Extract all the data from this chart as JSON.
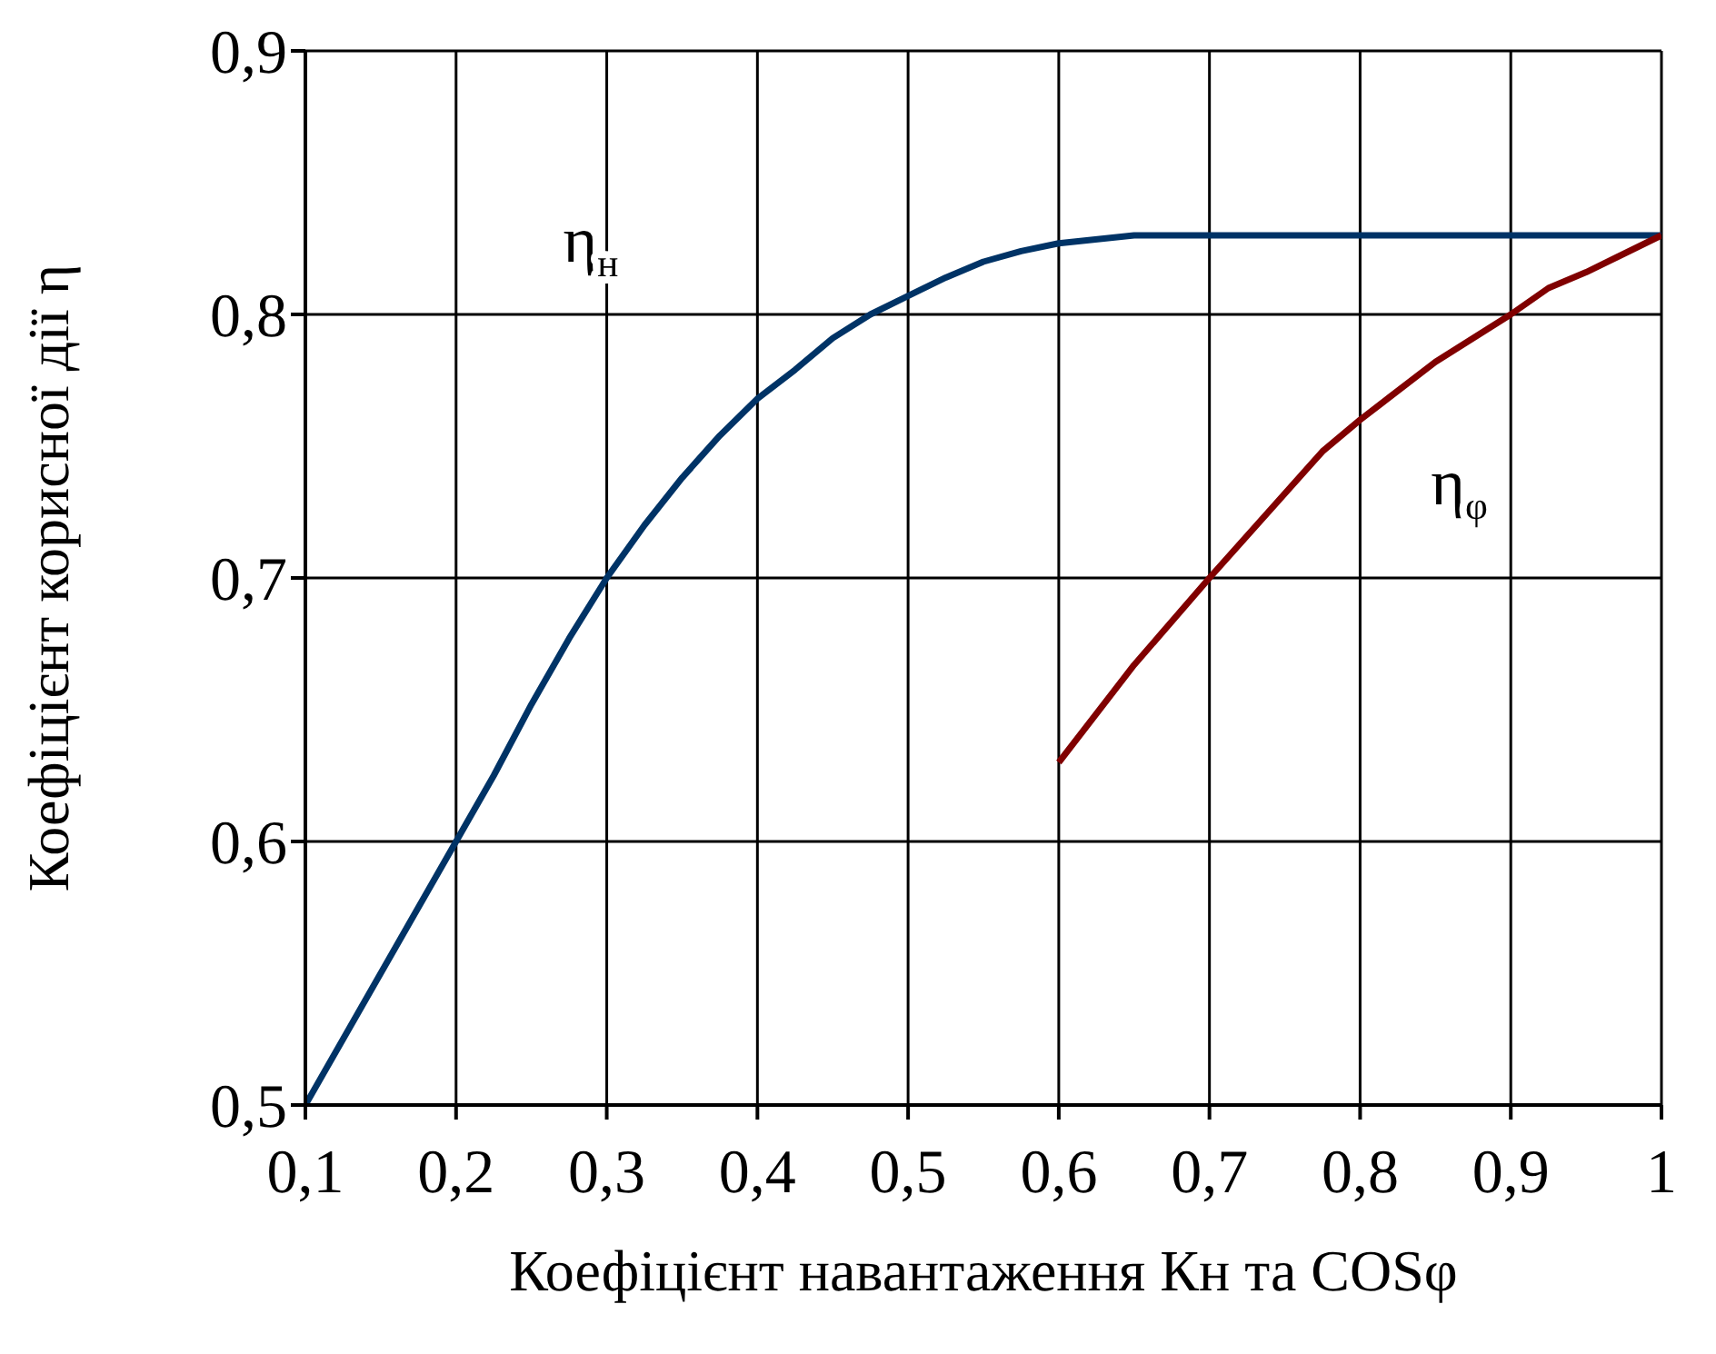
{
  "chart_data": {
    "type": "line",
    "xlabel": "Коефіцієнт навантаження Кн та COSφ",
    "ylabel": "Коефіцієнт корисної дії η",
    "xlim": [
      0.1,
      1
    ],
    "xticks": [
      {
        "value": 0.1,
        "label": "0,1"
      },
      {
        "value": 0.2,
        "label": "0,2"
      },
      {
        "value": 0.3,
        "label": "0,3"
      },
      {
        "value": 0.4,
        "label": "0,4"
      },
      {
        "value": 0.5,
        "label": "0,5"
      },
      {
        "value": 0.6,
        "label": "0,6"
      },
      {
        "value": 0.7,
        "label": "0,7"
      },
      {
        "value": 0.8,
        "label": "0,8"
      },
      {
        "value": 0.9,
        "label": "0,9"
      },
      1
    ],
    "ylim": [
      0.5,
      0.9
    ],
    "yticks": [
      {
        "value": 0.5,
        "label": "0,5"
      },
      {
        "value": 0.6,
        "label": "0,6"
      },
      {
        "value": 0.7,
        "label": "0,7"
      },
      {
        "value": 0.8,
        "label": "0,8"
      },
      {
        "value": 0.9,
        "label": "0,9"
      }
    ],
    "grid": true,
    "marker": "none",
    "line_style": "solid",
    "series": [
      {
        "name": "η$_{н}$",
        "color": "#003366",
        "x": [
          0.1,
          0.2,
          0.225,
          0.25,
          0.275,
          0.3,
          0.325,
          0.35,
          0.375,
          0.4,
          0.425,
          0.45,
          0.475,
          0.5,
          0.525,
          0.55,
          0.575,
          0.6,
          0.65,
          1
        ],
        "values": [
          0.5,
          0.6,
          0.625,
          0.652,
          0.677,
          0.7,
          0.72,
          0.738,
          0.754,
          0.768,
          0.779,
          0.791,
          0.8,
          0.807,
          0.814,
          0.82,
          0.824,
          0.827,
          0.83,
          0.83
        ]
      },
      {
        "name": "η$_{φ}$",
        "color": "#800000",
        "x": [
          0.6,
          0.65,
          0.7,
          0.775,
          0.8,
          0.85,
          0.9,
          0.925,
          0.95,
          1
        ],
        "values": [
          0.63,
          0.667,
          0.7,
          0.748,
          0.76,
          0.782,
          0.8,
          0.81,
          0.816,
          0.83
        ]
      }
    ]
  }
}
